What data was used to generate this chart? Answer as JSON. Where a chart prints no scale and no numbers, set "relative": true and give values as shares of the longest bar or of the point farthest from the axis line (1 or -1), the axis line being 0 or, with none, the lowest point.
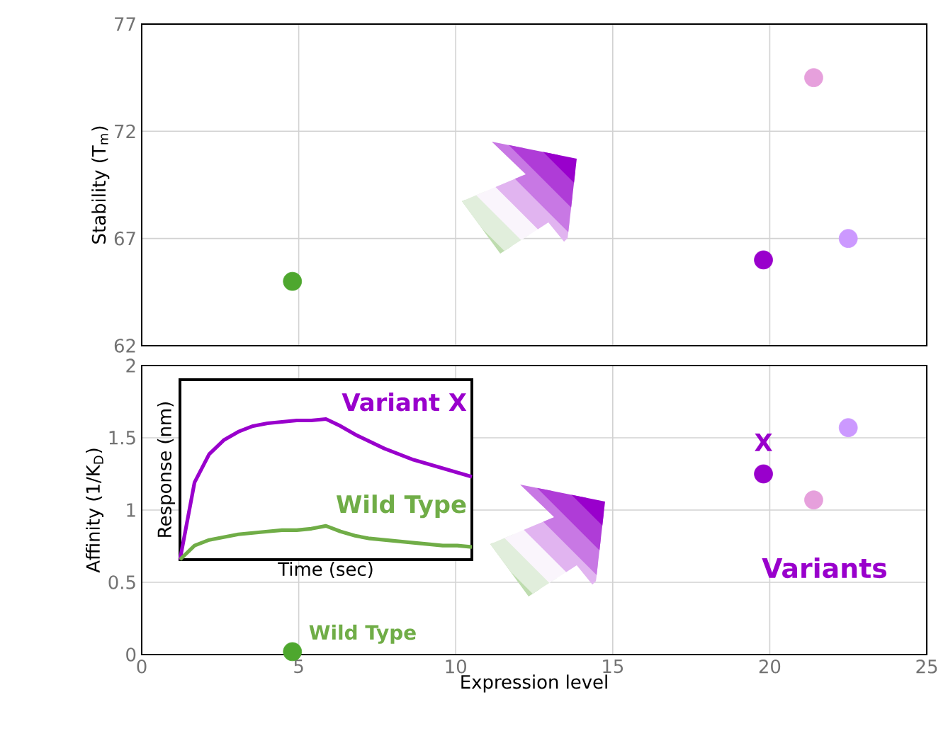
{
  "chart_data": [
    {
      "type": "scatter",
      "ylabel": "Stability (T$_{m}$)",
      "x": [
        4.8,
        19.8,
        21.4,
        22.5
      ],
      "values": [
        65,
        66,
        74.5,
        67
      ],
      "colors": [
        "#4ea72e",
        "#9900cc",
        "#e6a0dc",
        "#cc99ff"
      ],
      "xlim": [
        0,
        25
      ],
      "xticks": [
        0,
        5,
        10,
        15,
        20,
        25
      ],
      "ylim": [
        62,
        77
      ],
      "yticks": [
        62,
        67,
        72,
        77
      ],
      "grid": true,
      "tick_labels": "y",
      "marker": "circle"
    },
    {
      "type": "scatter",
      "xlabel": "Expression level",
      "ylabel": "Affinity (1/K$_{D}$)",
      "x": [
        4.8,
        19.8,
        21.4,
        22.5
      ],
      "values": [
        0.02,
        1.25,
        1.07,
        1.57
      ],
      "colors": [
        "#4ea72e",
        "#9900cc",
        "#e6a0dc",
        "#cc99ff"
      ],
      "xlim": [
        0,
        25
      ],
      "xticks": [
        0,
        5,
        10,
        15,
        20,
        25
      ],
      "ylim": [
        0,
        2
      ],
      "yticks": [
        0,
        0.5,
        1,
        1.5,
        2
      ],
      "grid": true,
      "marker": "circle",
      "annotations": [
        {
          "text": "X",
          "x": 19.8,
          "y": 1.25
        },
        {
          "text": "Wild Type",
          "x": 4.8,
          "y": 0.02
        },
        "Variants"
      ]
    },
    {
      "type": "line",
      "relative": true,
      "xlabel": "Time (sec)",
      "ylabel": "Response (nm)",
      "line_style": "solid",
      "categories": [
        null,
        null,
        null,
        null,
        null,
        null,
        null,
        null,
        null,
        null,
        null,
        null,
        null,
        null,
        null,
        null,
        null,
        null,
        null,
        null,
        null
      ],
      "series": [
        {
          "name": "Variant X",
          "color": "#9900cc",
          "values": [
            0,
            0.55,
            0.75,
            0.85,
            0.91,
            0.95,
            0.97,
            0.98,
            0.99,
            0.99,
            1.0,
            0.95,
            0.89,
            0.84,
            0.79,
            0.75,
            0.71,
            0.68,
            0.65,
            0.62,
            0.59
          ]
        },
        {
          "name": "Wild Type",
          "color": "#70ad47",
          "values": [
            0,
            0.1,
            0.14,
            0.16,
            0.18,
            0.19,
            0.2,
            0.21,
            0.21,
            0.22,
            0.24,
            0.2,
            0.17,
            0.15,
            0.14,
            0.13,
            0.12,
            0.11,
            0.1,
            0.1,
            0.09
          ]
        }
      ]
    }
  ]
}
